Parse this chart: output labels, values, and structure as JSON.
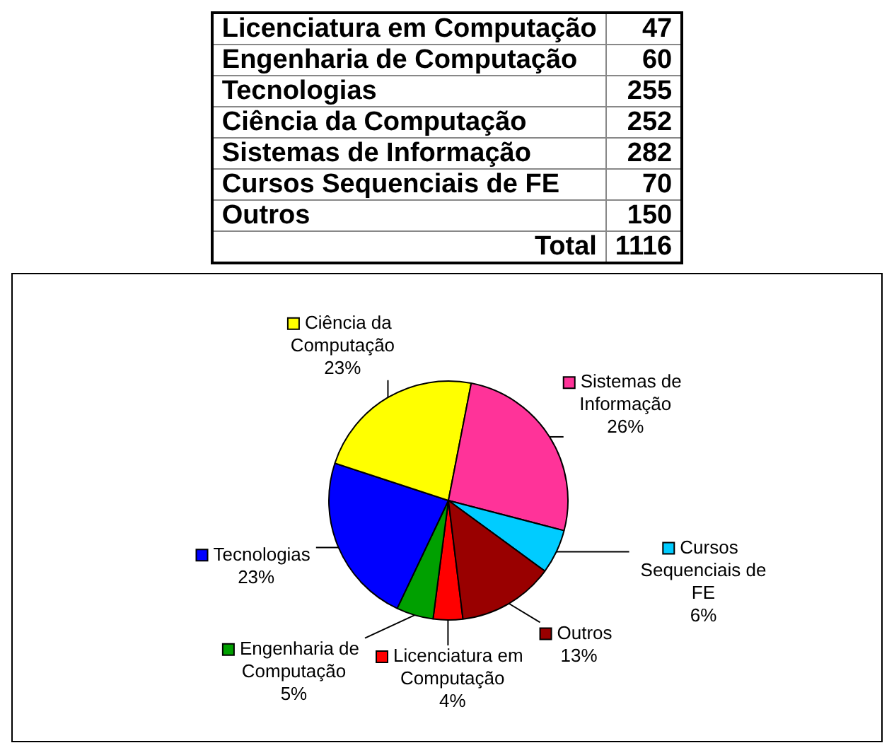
{
  "chart_data": [
    {
      "type": "other",
      "categories": [
        "Licenciatura em Computação",
        "Engenharia de Computação",
        "Tecnologias",
        "Ciência da Computação",
        "Sistemas de Informação",
        "Cursos Sequenciais de FE",
        "Outros"
      ],
      "values": [
        47,
        60,
        255,
        252,
        282,
        70,
        150
      ],
      "data_labels": true,
      "annotations": [
        "Total"
      ],
      "totals": [
        "1116"
      ]
    },
    {
      "type": "pie",
      "categories": [
        "Licenciatura em Computação",
        "Engenharia de Computação",
        "Tecnologias",
        "Ciência da Computação",
        "Sistemas de Informação",
        "Cursos Sequenciais de FE",
        "Outros"
      ],
      "values": [
        4,
        5,
        23,
        23,
        26,
        6,
        13
      ],
      "colors": [
        "#ff0000",
        "#00a000",
        "#0000ff",
        "#ffff00",
        "#ff3399",
        "#00ccff",
        "#990000"
      ],
      "value_labels": [
        "4%",
        "5%",
        "23%",
        "23%",
        "26%",
        "6%",
        "13%"
      ],
      "legend": true
    }
  ]
}
